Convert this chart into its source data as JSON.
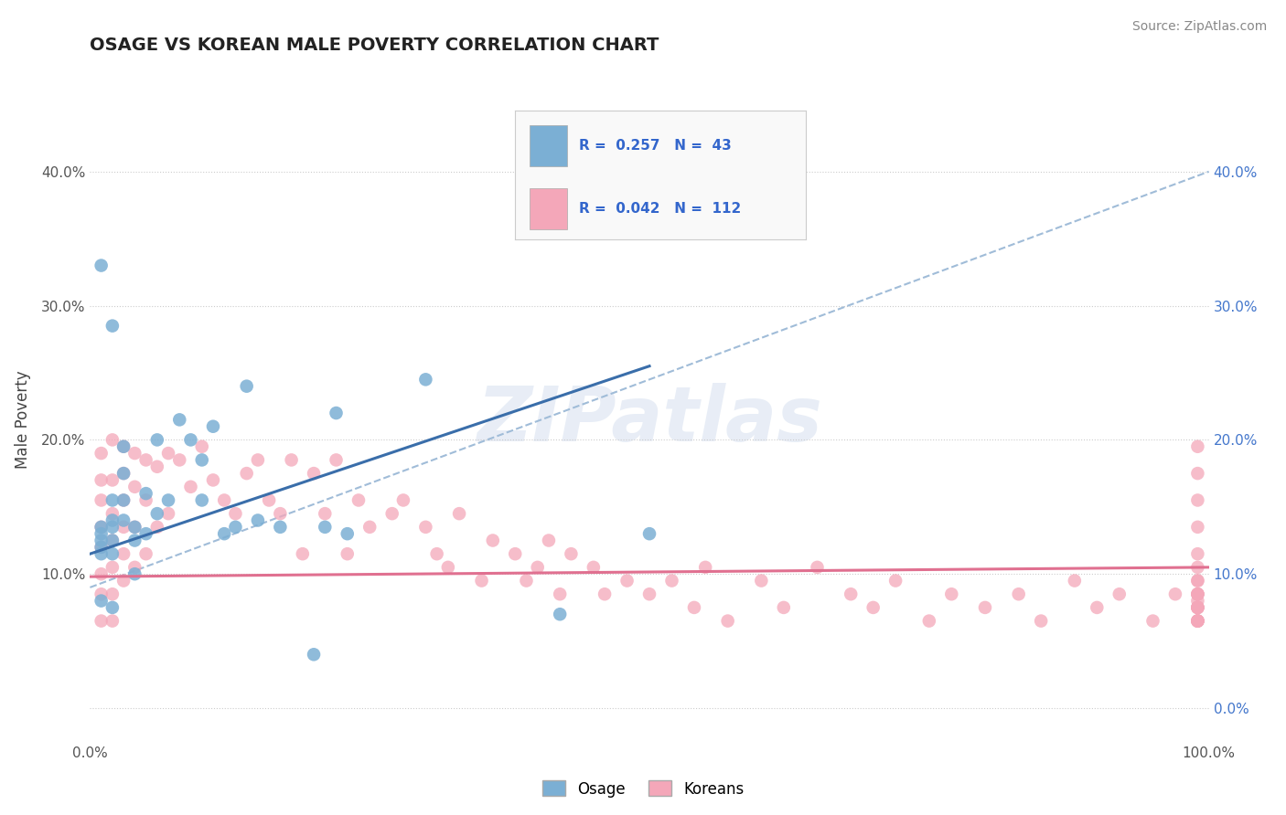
{
  "title": "OSAGE VS KOREAN MALE POVERTY CORRELATION CHART",
  "source": "Source: ZipAtlas.com",
  "ylabel": "Male Poverty",
  "watermark": "ZIPatlas",
  "osage_color": "#7bafd4",
  "korean_color": "#f4a7b9",
  "osage_line_color": "#3a6eaa",
  "korean_line_color": "#e07090",
  "trend_dash_color": "#a0bcd8",
  "osage_R": 0.257,
  "osage_N": 43,
  "korean_R": 0.042,
  "korean_N": 112,
  "xlim": [
    0.0,
    1.0
  ],
  "ylim": [
    -0.025,
    0.455
  ],
  "yticks": [
    0.0,
    0.1,
    0.2,
    0.3,
    0.4
  ],
  "ytick_labels_left": [
    "",
    "10.0%",
    "20.0%",
    "30.0%",
    "40.0%"
  ],
  "ytick_labels_right": [
    "0.0%",
    "10.0%",
    "20.0%",
    "30.0%",
    "40.0%"
  ],
  "xtick_labels": [
    "0.0%",
    "",
    "",
    "",
    "",
    "",
    "",
    "",
    "",
    "",
    "100.0%"
  ],
  "osage_line_x": [
    0.0,
    0.5
  ],
  "osage_line_y": [
    0.115,
    0.255
  ],
  "korean_line_x": [
    0.0,
    1.0
  ],
  "korean_line_y": [
    0.098,
    0.105
  ],
  "dash_line_x": [
    0.0,
    1.0
  ],
  "dash_line_y": [
    0.09,
    0.4
  ],
  "osage_x": [
    0.01,
    0.01,
    0.01,
    0.01,
    0.01,
    0.01,
    0.01,
    0.02,
    0.02,
    0.02,
    0.02,
    0.02,
    0.02,
    0.02,
    0.03,
    0.03,
    0.03,
    0.03,
    0.04,
    0.04,
    0.04,
    0.05,
    0.05,
    0.06,
    0.06,
    0.07,
    0.08,
    0.09,
    0.1,
    0.1,
    0.11,
    0.12,
    0.13,
    0.14,
    0.15,
    0.17,
    0.2,
    0.21,
    0.22,
    0.23,
    0.3,
    0.42,
    0.5
  ],
  "osage_y": [
    0.33,
    0.135,
    0.13,
    0.125,
    0.12,
    0.115,
    0.08,
    0.285,
    0.155,
    0.14,
    0.135,
    0.125,
    0.115,
    0.075,
    0.195,
    0.175,
    0.155,
    0.14,
    0.135,
    0.125,
    0.1,
    0.16,
    0.13,
    0.2,
    0.145,
    0.155,
    0.215,
    0.2,
    0.185,
    0.155,
    0.21,
    0.13,
    0.135,
    0.24,
    0.14,
    0.135,
    0.04,
    0.135,
    0.22,
    0.13,
    0.245,
    0.07,
    0.13
  ],
  "korean_x": [
    0.01,
    0.01,
    0.01,
    0.01,
    0.01,
    0.01,
    0.01,
    0.01,
    0.02,
    0.02,
    0.02,
    0.02,
    0.02,
    0.02,
    0.02,
    0.03,
    0.03,
    0.03,
    0.03,
    0.03,
    0.03,
    0.04,
    0.04,
    0.04,
    0.04,
    0.05,
    0.05,
    0.05,
    0.06,
    0.06,
    0.07,
    0.07,
    0.08,
    0.09,
    0.1,
    0.11,
    0.12,
    0.13,
    0.14,
    0.15,
    0.16,
    0.17,
    0.18,
    0.19,
    0.2,
    0.21,
    0.22,
    0.23,
    0.24,
    0.25,
    0.27,
    0.28,
    0.3,
    0.31,
    0.32,
    0.33,
    0.35,
    0.36,
    0.38,
    0.39,
    0.4,
    0.41,
    0.42,
    0.43,
    0.45,
    0.46,
    0.48,
    0.5,
    0.52,
    0.54,
    0.55,
    0.57,
    0.6,
    0.62,
    0.65,
    0.68,
    0.7,
    0.72,
    0.75,
    0.77,
    0.8,
    0.83,
    0.85,
    0.88,
    0.9,
    0.92,
    0.95,
    0.97,
    0.99,
    0.99,
    0.99,
    0.99,
    0.99,
    0.99,
    0.99,
    0.99,
    0.99,
    0.99,
    0.99,
    0.99,
    0.99,
    0.99,
    0.99,
    0.99,
    0.99,
    0.99,
    0.99,
    0.99,
    0.99,
    0.99,
    0.99,
    0.99,
    0.99,
    0.99
  ],
  "korean_y": [
    0.19,
    0.17,
    0.155,
    0.135,
    0.12,
    0.1,
    0.085,
    0.065,
    0.2,
    0.17,
    0.145,
    0.125,
    0.105,
    0.085,
    0.065,
    0.195,
    0.175,
    0.155,
    0.135,
    0.115,
    0.095,
    0.19,
    0.165,
    0.135,
    0.105,
    0.185,
    0.155,
    0.115,
    0.18,
    0.135,
    0.19,
    0.145,
    0.185,
    0.165,
    0.195,
    0.17,
    0.155,
    0.145,
    0.175,
    0.185,
    0.155,
    0.145,
    0.185,
    0.115,
    0.175,
    0.145,
    0.185,
    0.115,
    0.155,
    0.135,
    0.145,
    0.155,
    0.135,
    0.115,
    0.105,
    0.145,
    0.095,
    0.125,
    0.115,
    0.095,
    0.105,
    0.125,
    0.085,
    0.115,
    0.105,
    0.085,
    0.095,
    0.085,
    0.095,
    0.075,
    0.105,
    0.065,
    0.095,
    0.075,
    0.105,
    0.085,
    0.075,
    0.095,
    0.065,
    0.085,
    0.075,
    0.085,
    0.065,
    0.095,
    0.075,
    0.085,
    0.065,
    0.085,
    0.195,
    0.175,
    0.155,
    0.135,
    0.115,
    0.095,
    0.075,
    0.065,
    0.08,
    0.105,
    0.085,
    0.065,
    0.075,
    0.095,
    0.075,
    0.065,
    0.085,
    0.065,
    0.075,
    0.085,
    0.065,
    0.075,
    0.085,
    0.065,
    0.075,
    0.085
  ]
}
